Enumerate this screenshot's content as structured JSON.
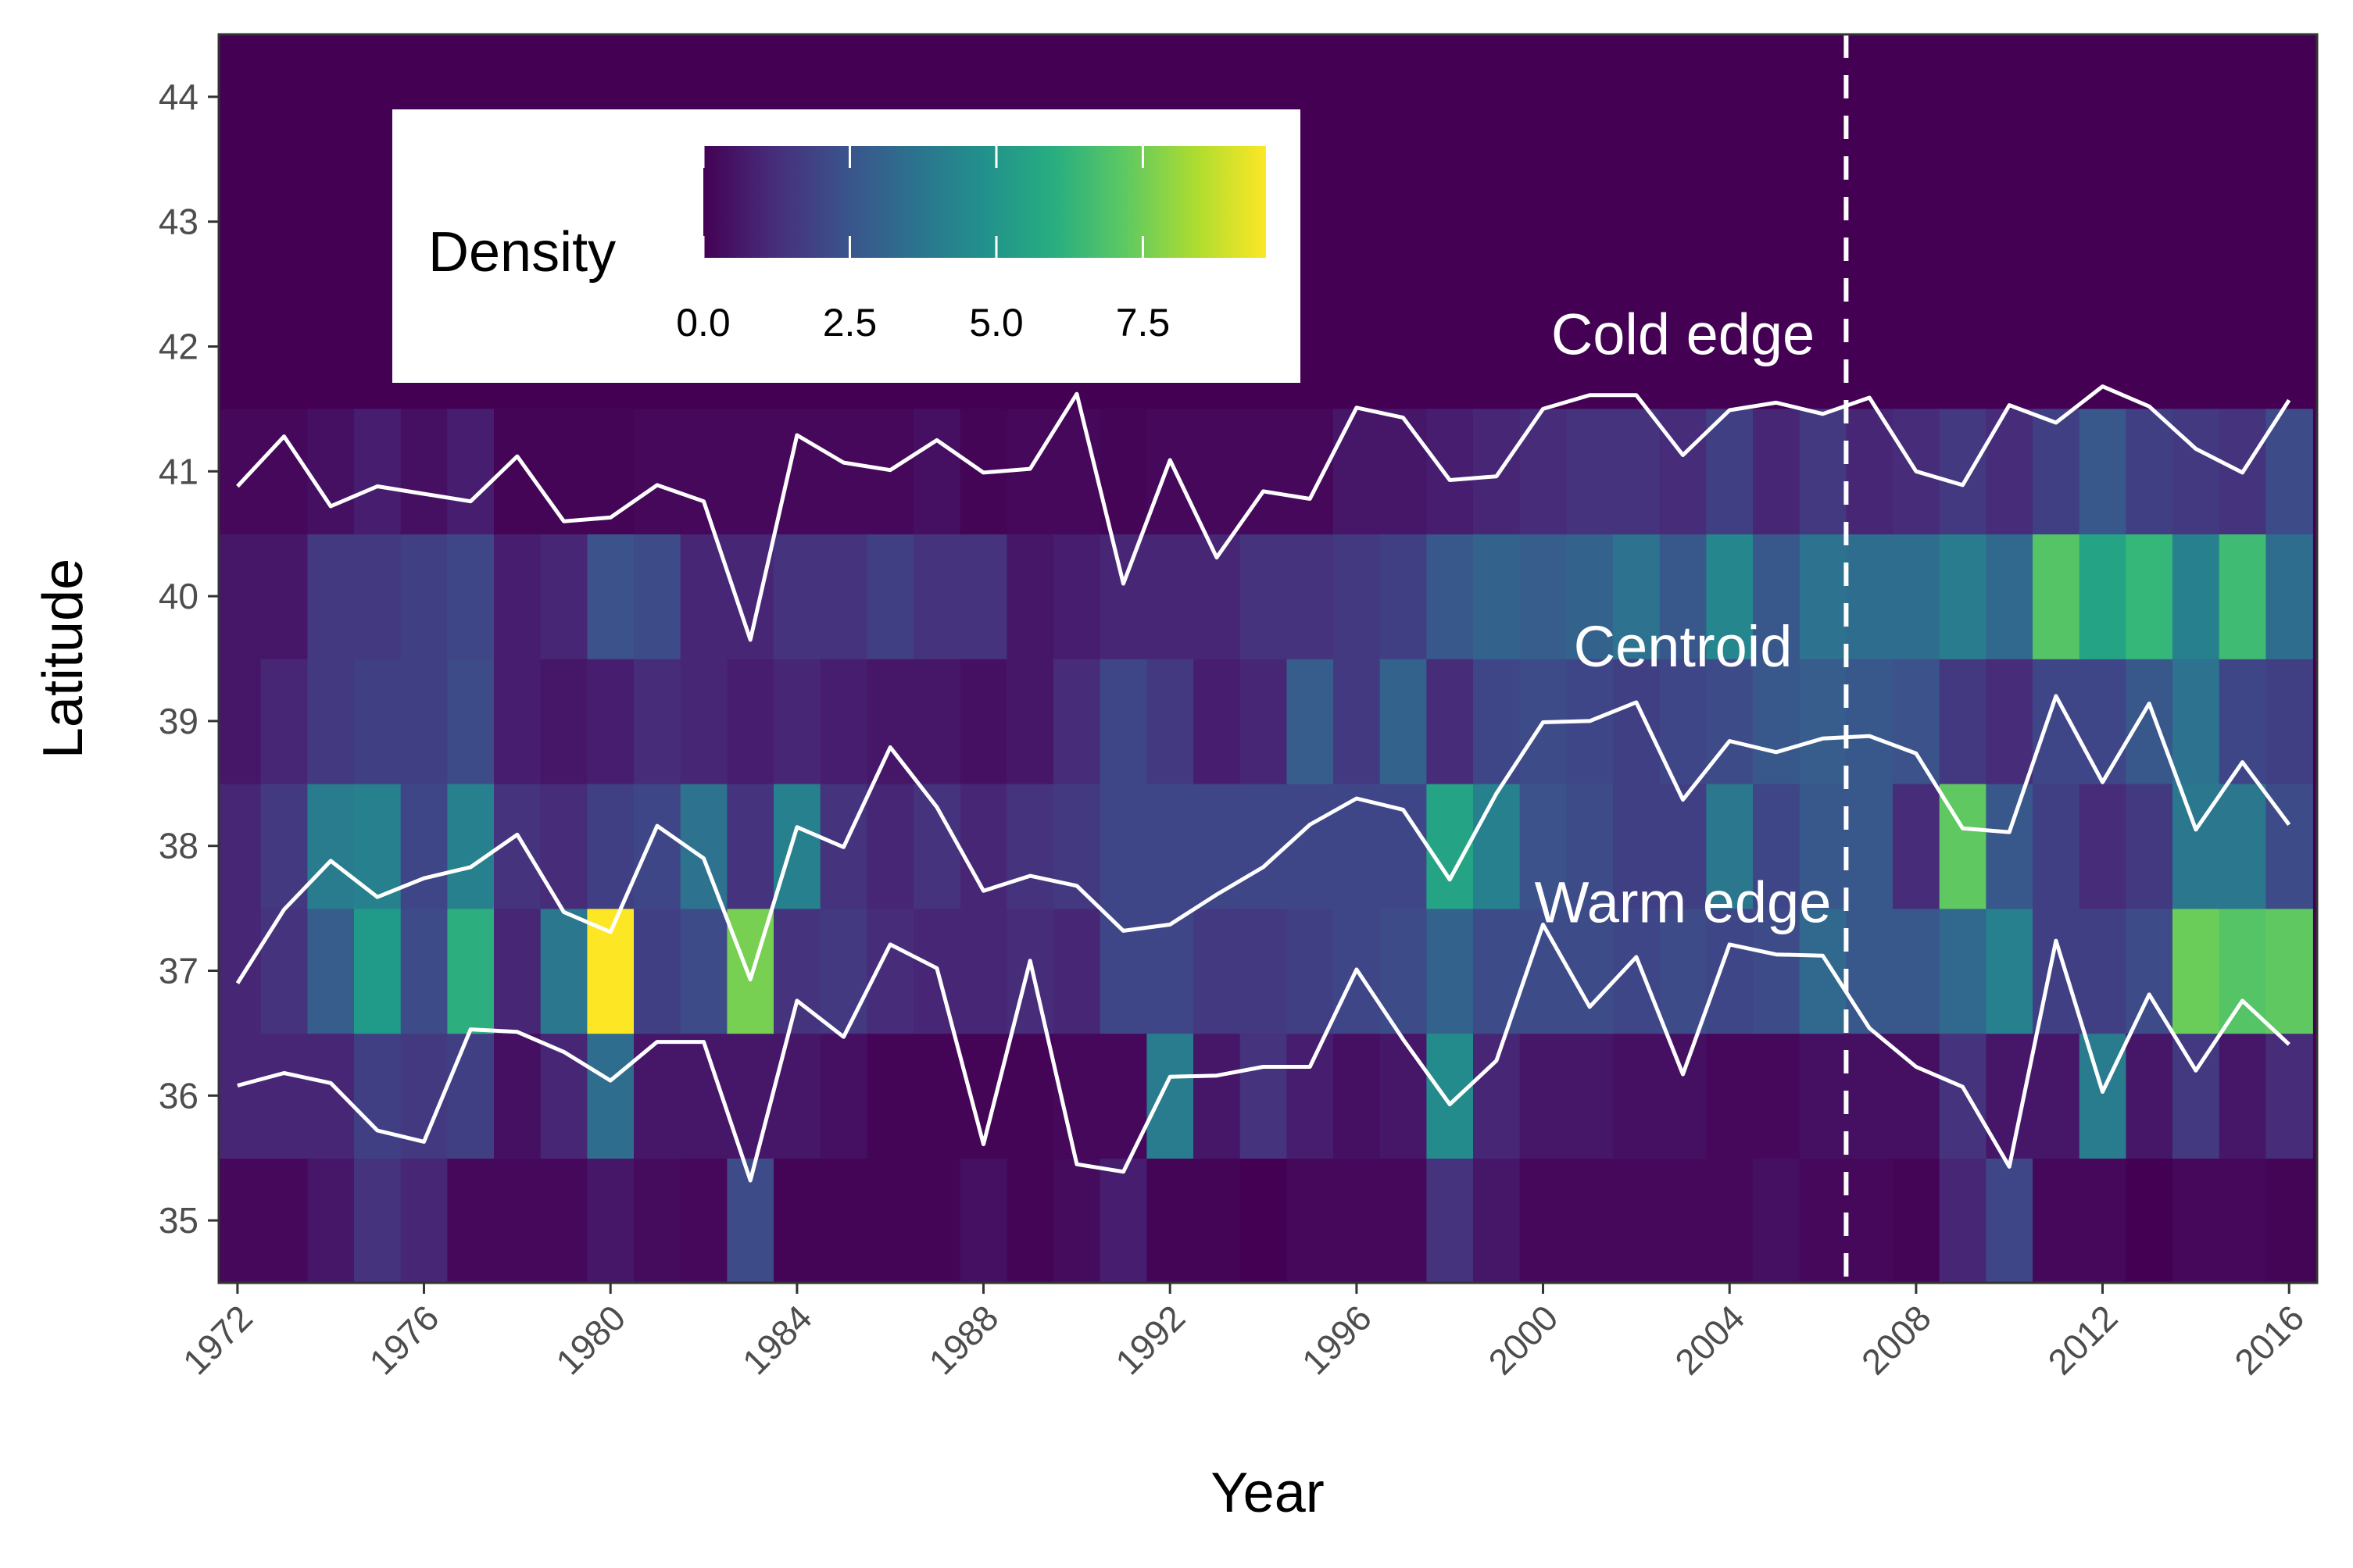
{
  "chart_data": {
    "type": "heatmap",
    "xlabel": "Year",
    "ylabel": "Latitude",
    "xlim": [
      1971.6,
      2016.6
    ],
    "ylim": [
      34.5,
      44.5
    ],
    "x_ticks": [
      1972,
      1976,
      1980,
      1984,
      1988,
      1992,
      1996,
      2000,
      2004,
      2008,
      2012,
      2016
    ],
    "y_ticks": [
      35,
      36,
      37,
      38,
      39,
      40,
      41,
      42,
      43,
      44
    ],
    "years": [
      1972,
      1973,
      1974,
      1975,
      1976,
      1977,
      1978,
      1979,
      1980,
      1981,
      1982,
      1983,
      1984,
      1985,
      1986,
      1987,
      1988,
      1989,
      1990,
      1991,
      1992,
      1993,
      1994,
      1995,
      1996,
      1997,
      1998,
      1999,
      2000,
      2001,
      2002,
      2003,
      2004,
      2005,
      2006,
      2007,
      2008,
      2009,
      2010,
      2011,
      2012,
      2013,
      2014,
      2015,
      2016
    ],
    "latitudes": [
      35,
      36,
      37,
      38,
      39,
      40,
      41
    ],
    "density": [
      [
        0.2,
        0.2,
        0.6,
        1.4,
        1.0,
        0.2,
        0.2,
        0.2,
        0.6,
        0.3,
        0.2,
        2.2,
        0.1,
        0.1,
        0.1,
        0.1,
        0.4,
        0.1,
        0.3,
        0.8,
        0.1,
        0.1,
        0.0,
        0.2,
        0.2,
        0.2,
        1.4,
        0.6,
        0.2,
        0.2,
        0.2,
        0.2,
        0.2,
        0.4,
        0.2,
        0.2,
        0.1,
        1.0,
        2.0,
        0.2,
        0.2,
        0.0,
        0.2,
        0.2,
        0.1
      ],
      [
        1.0,
        1.0,
        1.0,
        1.8,
        1.6,
        1.8,
        0.4,
        1.0,
        3.4,
        0.6,
        0.6,
        0.6,
        0.6,
        0.4,
        0.1,
        0.1,
        0.1,
        0.1,
        0.2,
        0.2,
        4.0,
        0.6,
        1.4,
        0.8,
        0.4,
        0.6,
        4.6,
        1.0,
        0.6,
        0.6,
        0.4,
        0.4,
        0.2,
        0.2,
        0.4,
        0.4,
        0.4,
        1.4,
        0.6,
        0.6,
        4.0,
        0.6,
        1.6,
        0.6,
        1.2
      ],
      [
        1.0,
        1.4,
        2.8,
        5.2,
        2.2,
        6.0,
        1.0,
        3.8,
        10.0,
        1.8,
        2.2,
        7.6,
        1.4,
        1.6,
        1.2,
        1.0,
        1.0,
        1.2,
        1.0,
        2.0,
        2.0,
        1.6,
        1.6,
        1.8,
        2.0,
        2.2,
        3.0,
        2.2,
        2.2,
        2.2,
        2.0,
        2.2,
        2.0,
        2.2,
        3.2,
        2.6,
        2.6,
        3.2,
        4.2,
        1.8,
        1.8,
        2.2,
        7.4,
        7.0,
        7.2
      ],
      [
        1.0,
        1.6,
        4.0,
        4.2,
        2.0,
        4.2,
        1.4,
        1.2,
        1.8,
        2.0,
        3.6,
        1.4,
        4.2,
        1.4,
        1.0,
        1.4,
        1.0,
        1.4,
        1.6,
        2.0,
        2.0,
        2.0,
        2.0,
        2.0,
        2.0,
        2.0,
        5.6,
        4.2,
        2.4,
        2.2,
        1.8,
        1.8,
        3.8,
        2.0,
        2.6,
        2.6,
        1.2,
        7.2,
        2.6,
        1.8,
        1.2,
        1.6,
        3.8,
        3.8,
        2.2
      ],
      [
        0.6,
        1.0,
        1.6,
        1.8,
        1.8,
        2.2,
        0.8,
        0.6,
        0.8,
        1.2,
        1.0,
        0.8,
        1.0,
        0.8,
        0.6,
        0.6,
        0.4,
        0.6,
        1.2,
        2.0,
        1.6,
        0.8,
        1.0,
        2.8,
        1.6,
        3.0,
        1.2,
        2.0,
        2.2,
        2.0,
        1.8,
        2.0,
        2.2,
        2.6,
        2.8,
        2.6,
        2.4,
        1.6,
        1.2,
        2.0,
        2.0,
        2.6,
        3.6,
        2.0,
        1.8
      ],
      [
        0.6,
        0.6,
        1.6,
        1.6,
        1.8,
        2.0,
        0.8,
        1.0,
        2.4,
        2.2,
        1.0,
        1.0,
        1.4,
        1.4,
        1.8,
        1.4,
        1.4,
        0.6,
        0.8,
        1.0,
        1.0,
        1.0,
        1.4,
        1.4,
        1.6,
        1.8,
        2.6,
        3.0,
        2.8,
        3.0,
        3.6,
        2.6,
        4.4,
        2.6,
        3.6,
        3.4,
        3.4,
        4.0,
        3.2,
        7.0,
        5.6,
        6.4,
        4.2,
        6.6,
        3.4
      ],
      [
        0.2,
        0.2,
        0.4,
        0.8,
        0.4,
        0.8,
        0.1,
        0.1,
        0.1,
        0.2,
        0.2,
        0.2,
        0.2,
        0.2,
        0.2,
        0.4,
        0.1,
        0.2,
        0.2,
        0.1,
        0.2,
        0.2,
        0.2,
        0.2,
        0.6,
        0.6,
        0.8,
        1.0,
        1.2,
        1.4,
        1.4,
        1.2,
        1.8,
        1.0,
        1.6,
        1.0,
        1.2,
        1.6,
        1.2,
        1.8,
        2.6,
        1.8,
        1.6,
        1.4,
        2.2
      ]
    ],
    "series": [
      {
        "name": "Cold edge",
        "values": [
          40.88,
          41.28,
          40.72,
          40.88,
          40.82,
          40.76,
          41.12,
          40.6,
          40.63,
          40.89,
          40.76,
          39.65,
          41.29,
          41.07,
          41.01,
          41.25,
          40.99,
          41.02,
          41.62,
          40.1,
          41.09,
          40.31,
          40.84,
          40.78,
          41.51,
          41.43,
          40.93,
          40.96,
          41.5,
          41.61,
          41.61,
          41.13,
          41.49,
          41.55,
          41.46,
          41.59,
          41.0,
          40.89,
          41.53,
          41.39,
          41.68,
          41.52,
          41.18,
          40.99,
          41.57
        ]
      },
      {
        "name": "Centroid",
        "values": [
          36.9,
          37.49,
          37.88,
          37.59,
          37.74,
          37.83,
          38.09,
          37.47,
          37.31,
          38.16,
          37.9,
          36.93,
          38.15,
          37.99,
          38.79,
          38.31,
          37.64,
          37.76,
          37.68,
          37.32,
          37.37,
          37.61,
          37.83,
          38.17,
          38.38,
          38.29,
          37.73,
          38.42,
          38.99,
          39.0,
          39.15,
          38.37,
          38.84,
          38.75,
          38.86,
          38.88,
          38.74,
          38.14,
          38.11,
          39.2,
          38.51,
          39.14,
          38.13,
          38.67,
          38.17
        ]
      },
      {
        "name": "Warm edge",
        "values": [
          36.08,
          36.18,
          36.1,
          35.72,
          35.63,
          36.53,
          36.51,
          36.35,
          36.12,
          36.43,
          36.43,
          35.32,
          36.76,
          36.47,
          37.21,
          37.02,
          35.61,
          37.08,
          35.45,
          35.39,
          36.15,
          36.16,
          36.23,
          36.23,
          37.01,
          36.45,
          35.93,
          36.28,
          37.37,
          36.71,
          37.11,
          36.17,
          37.21,
          37.13,
          37.12,
          36.54,
          36.23,
          36.07,
          35.43,
          37.24,
          36.03,
          36.81,
          36.2,
          36.76,
          36.41
        ]
      }
    ],
    "vline": {
      "x": 2006.5,
      "style": "dashed",
      "color": "#ffffff"
    },
    "annotations": [
      {
        "text": "Cold edge",
        "x": 2003.0,
        "y": 42.1
      },
      {
        "text": "Centroid",
        "x": 2003.0,
        "y": 39.6
      },
      {
        "text": "Warm edge",
        "x": 2003.0,
        "y": 37.55
      }
    ],
    "background_color": "#440154",
    "grid": false,
    "legend": {
      "title": "Density",
      "position": "top-left",
      "ticks": [
        "0.0",
        "2.5",
        "5.0",
        "7.5"
      ],
      "tick_values": [
        0,
        2.5,
        5,
        7.5
      ],
      "range": [
        0,
        9.6
      ],
      "colormap": "viridis"
    }
  }
}
